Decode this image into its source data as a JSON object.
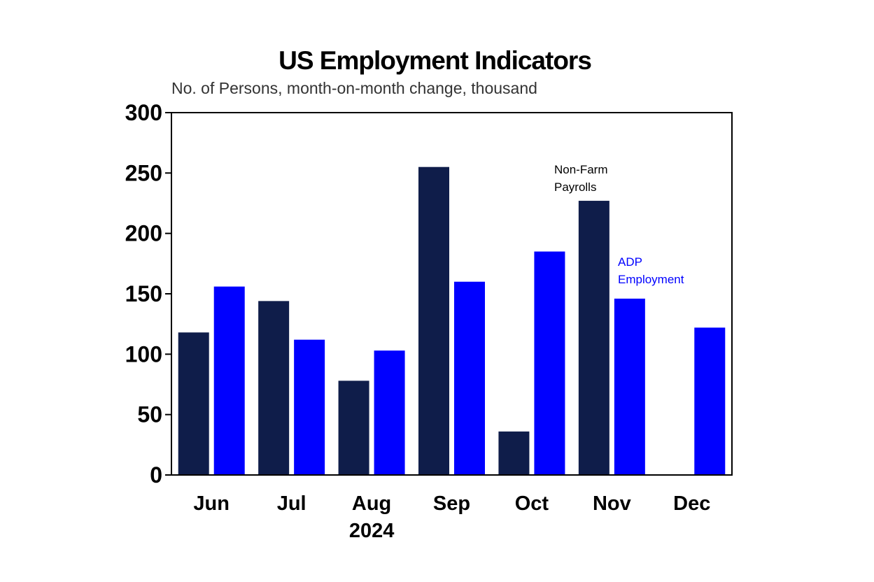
{
  "chart_data": {
    "type": "bar",
    "title": "US Employment Indicators",
    "subtitle": "No. of Persons, month-on-month change, thousand",
    "categories": [
      "Jun",
      "Jul",
      "Aug",
      "Sep",
      "Oct",
      "Nov",
      "Dec"
    ],
    "xlabel": "2024",
    "ylabel": "",
    "ylim": [
      0,
      300
    ],
    "yticks": [
      "0",
      "50",
      "100",
      "150",
      "200",
      "250",
      "300"
    ],
    "grid": false,
    "series": [
      {
        "name": "Non-Farm Payrolls",
        "color": "#0f1d4a",
        "values": [
          118,
          144,
          78,
          255,
          36,
          227,
          null
        ]
      },
      {
        "name": "ADP Employment",
        "color": "#0000ff",
        "values": [
          156,
          112,
          103,
          160,
          185,
          146,
          122
        ]
      }
    ],
    "annotations": [
      {
        "series": "Non-Farm Payrolls",
        "lines": [
          "Non-Farm",
          "Payrolls"
        ]
      },
      {
        "series": "ADP Employment",
        "lines": [
          "ADP",
          "Employment"
        ]
      }
    ]
  }
}
